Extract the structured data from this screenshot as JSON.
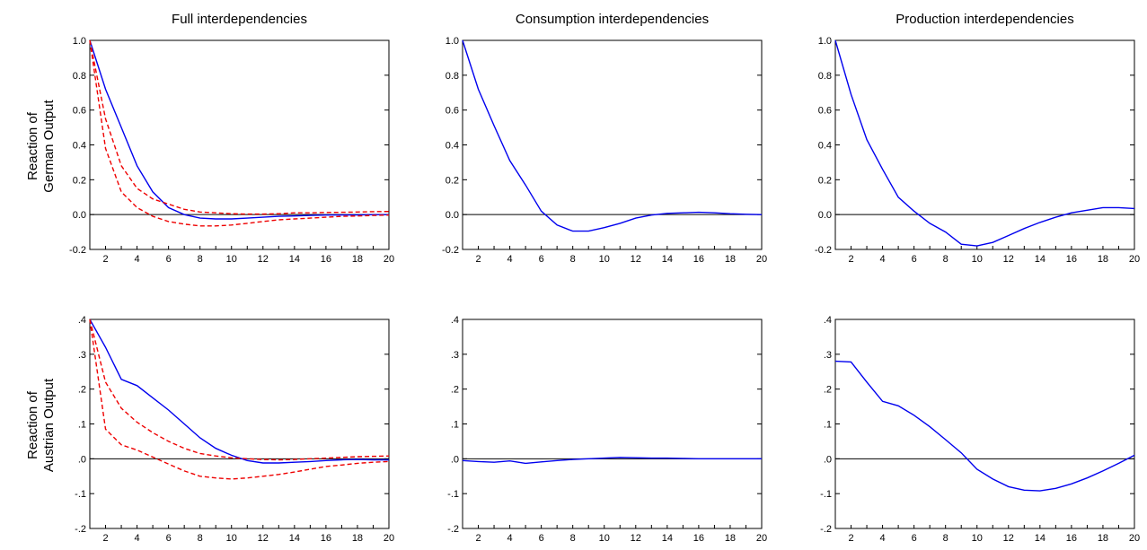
{
  "row_labels": [
    [
      "Reaction of",
      "German Output"
    ],
    [
      "Reaction of",
      "Austrian Output"
    ]
  ],
  "colors": {
    "series": "#0000ee",
    "band": "#ee0000",
    "axis": "#000000"
  },
  "chart_data": [
    {
      "type": "line",
      "title": "Full interdependencies",
      "x": [
        1,
        2,
        3,
        4,
        5,
        6,
        7,
        8,
        9,
        10,
        11,
        12,
        13,
        14,
        15,
        16,
        17,
        18,
        19,
        20
      ],
      "xticks": [
        2,
        4,
        6,
        8,
        10,
        12,
        14,
        16,
        18,
        20
      ],
      "ylim": [
        -0.2,
        1.0
      ],
      "yticks": [
        -0.2,
        0.0,
        0.2,
        0.4,
        0.6,
        0.8,
        1.0
      ],
      "ytick_labels": [
        "-0.2",
        "0.0",
        "0.2",
        "0.4",
        "0.6",
        "0.8",
        "1.0"
      ],
      "series": [
        {
          "style": "solid",
          "values": [
            1.0,
            0.72,
            0.5,
            0.28,
            0.13,
            0.04,
            0.0,
            -0.02,
            -0.025,
            -0.025,
            -0.02,
            -0.015,
            -0.01,
            -0.008,
            -0.005,
            -0.003,
            -0.002,
            -0.002,
            0.0,
            0.0
          ]
        },
        {
          "style": "dashed",
          "values": [
            1.0,
            0.55,
            0.28,
            0.15,
            0.09,
            0.06,
            0.03,
            0.015,
            0.01,
            0.005,
            0.003,
            0.003,
            0.005,
            0.01,
            0.01,
            0.012,
            0.013,
            0.015,
            0.017,
            0.018
          ]
        },
        {
          "style": "dashed",
          "values": [
            1.0,
            0.38,
            0.13,
            0.04,
            -0.01,
            -0.04,
            -0.055,
            -0.065,
            -0.065,
            -0.06,
            -0.05,
            -0.04,
            -0.03,
            -0.025,
            -0.02,
            -0.015,
            -0.01,
            -0.008,
            -0.005,
            -0.003
          ]
        }
      ]
    },
    {
      "type": "line",
      "title": "Consumption interdependencies",
      "x": [
        1,
        2,
        3,
        4,
        5,
        6,
        7,
        8,
        9,
        10,
        11,
        12,
        13,
        14,
        15,
        16,
        17,
        18,
        19,
        20
      ],
      "xticks": [
        2,
        4,
        6,
        8,
        10,
        12,
        14,
        16,
        18,
        20
      ],
      "ylim": [
        -0.2,
        1.0
      ],
      "yticks": [
        -0.2,
        0.0,
        0.2,
        0.4,
        0.6,
        0.8,
        1.0
      ],
      "ytick_labels": [
        "-0.2",
        "0.0",
        "0.2",
        "0.4",
        "0.6",
        "0.8",
        "1.0"
      ],
      "series": [
        {
          "style": "solid",
          "values": [
            1.0,
            0.72,
            0.51,
            0.31,
            0.17,
            0.02,
            -0.06,
            -0.095,
            -0.095,
            -0.075,
            -0.05,
            -0.02,
            -0.003,
            0.007,
            0.01,
            0.013,
            0.01,
            0.005,
            0.002,
            0.0
          ]
        }
      ]
    },
    {
      "type": "line",
      "title": "Production interdependencies",
      "x": [
        1,
        2,
        3,
        4,
        5,
        6,
        7,
        8,
        9,
        10,
        11,
        12,
        13,
        14,
        15,
        16,
        17,
        18,
        19,
        20
      ],
      "xticks": [
        2,
        4,
        6,
        8,
        10,
        12,
        14,
        16,
        18,
        20
      ],
      "ylim": [
        -0.2,
        1.0
      ],
      "yticks": [
        -0.2,
        0.0,
        0.2,
        0.4,
        0.6,
        0.8,
        1.0
      ],
      "ytick_labels": [
        "-0.2",
        "0.0",
        "0.2",
        "0.4",
        "0.6",
        "0.8",
        "1.0"
      ],
      "series": [
        {
          "style": "solid",
          "values": [
            1.0,
            0.69,
            0.43,
            0.26,
            0.1,
            0.02,
            -0.05,
            -0.1,
            -0.17,
            -0.18,
            -0.16,
            -0.12,
            -0.08,
            -0.045,
            -0.015,
            0.01,
            0.025,
            0.04,
            0.04,
            0.035
          ]
        }
      ]
    },
    {
      "type": "line",
      "title": "",
      "x": [
        1,
        2,
        3,
        4,
        5,
        6,
        7,
        8,
        9,
        10,
        11,
        12,
        13,
        14,
        15,
        16,
        17,
        18,
        19,
        20
      ],
      "xticks": [
        2,
        4,
        6,
        8,
        10,
        12,
        14,
        16,
        18,
        20
      ],
      "ylim": [
        -0.2,
        0.4
      ],
      "yticks": [
        -0.2,
        -0.1,
        0.0,
        0.1,
        0.2,
        0.3,
        0.4
      ],
      "ytick_labels": [
        "-.2",
        "-.1",
        ".0",
        ".1",
        ".2",
        ".3",
        ".4"
      ],
      "series": [
        {
          "style": "solid",
          "values": [
            0.4,
            0.32,
            0.228,
            0.21,
            0.175,
            0.14,
            0.1,
            0.06,
            0.03,
            0.01,
            -0.005,
            -0.012,
            -0.012,
            -0.01,
            -0.008,
            -0.005,
            -0.003,
            -0.002,
            -0.003,
            -0.003
          ]
        },
        {
          "style": "dashed",
          "values": [
            0.4,
            0.22,
            0.145,
            0.105,
            0.075,
            0.05,
            0.03,
            0.015,
            0.008,
            0.003,
            0.0,
            -0.002,
            -0.003,
            -0.002,
            0.0,
            0.002,
            0.004,
            0.006,
            0.007,
            0.008
          ]
        },
        {
          "style": "dashed",
          "values": [
            0.4,
            0.085,
            0.04,
            0.025,
            0.005,
            -0.015,
            -0.035,
            -0.05,
            -0.055,
            -0.058,
            -0.055,
            -0.05,
            -0.045,
            -0.038,
            -0.03,
            -0.022,
            -0.018,
            -0.013,
            -0.01,
            -0.008
          ]
        }
      ]
    },
    {
      "type": "line",
      "title": "",
      "x": [
        1,
        2,
        3,
        4,
        5,
        6,
        7,
        8,
        9,
        10,
        11,
        12,
        13,
        14,
        15,
        16,
        17,
        18,
        19,
        20
      ],
      "xticks": [
        2,
        4,
        6,
        8,
        10,
        12,
        14,
        16,
        18,
        20
      ],
      "ylim": [
        -0.2,
        0.4
      ],
      "yticks": [
        -0.2,
        -0.1,
        0.0,
        0.1,
        0.2,
        0.3,
        0.4
      ],
      "ytick_labels": [
        "-.2",
        "-.1",
        ".0",
        ".1",
        ".2",
        ".3",
        ".4"
      ],
      "series": [
        {
          "style": "solid",
          "values": [
            -0.005,
            -0.008,
            -0.01,
            -0.006,
            -0.013,
            -0.009,
            -0.005,
            -0.002,
            0.0,
            0.002,
            0.004,
            0.003,
            0.002,
            0.002,
            0.001,
            0.0,
            0.0,
            0.0,
            0.0,
            0.0
          ]
        }
      ]
    },
    {
      "type": "line",
      "title": "",
      "x": [
        1,
        2,
        3,
        4,
        5,
        6,
        7,
        8,
        9,
        10,
        11,
        12,
        13,
        14,
        15,
        16,
        17,
        18,
        19,
        20
      ],
      "xticks": [
        2,
        4,
        6,
        8,
        10,
        12,
        14,
        16,
        18,
        20
      ],
      "ylim": [
        -0.2,
        0.4
      ],
      "yticks": [
        -0.2,
        -0.1,
        0.0,
        0.1,
        0.2,
        0.3,
        0.4
      ],
      "ytick_labels": [
        "-.2",
        "-.1",
        ".0",
        ".1",
        ".2",
        ".3",
        ".4"
      ],
      "series": [
        {
          "style": "solid",
          "values": [
            0.28,
            0.278,
            0.22,
            0.165,
            0.152,
            0.125,
            0.092,
            0.055,
            0.017,
            -0.03,
            -0.058,
            -0.08,
            -0.09,
            -0.092,
            -0.085,
            -0.072,
            -0.055,
            -0.035,
            -0.013,
            0.01
          ]
        }
      ]
    }
  ]
}
